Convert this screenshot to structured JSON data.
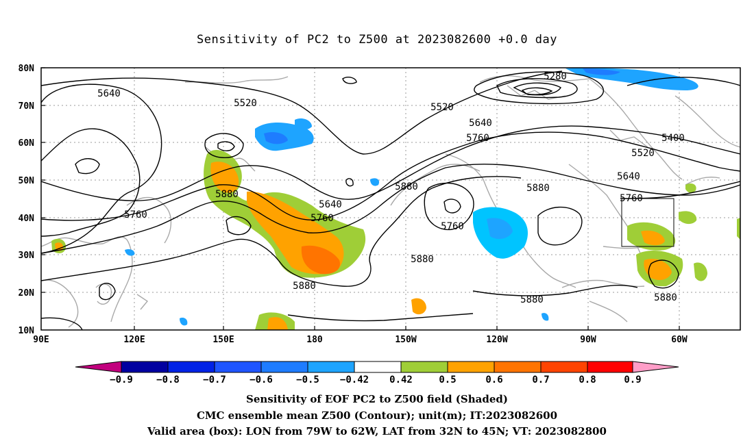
{
  "title": "Sensitivity of PC2 to Z500 at 2023082600 +0.0 day",
  "lat_labels": [
    "80N",
    "70N",
    "60N",
    "50N",
    "40N",
    "30N",
    "20N",
    "10N"
  ],
  "lon_labels": [
    "90E",
    "120E",
    "150E",
    "180",
    "150W",
    "120W",
    "90W",
    "60W"
  ],
  "colorbar": {
    "tick_labels": [
      "−0.9",
      "−0.8",
      "−0.7",
      "−0.6",
      "−0.5",
      "−0.42",
      "0.42",
      "0.5",
      "0.6",
      "0.7",
      "0.8",
      "0.9"
    ],
    "colors": [
      "#c2007e",
      "#0000a0",
      "#0022e6",
      "#1f55ff",
      "#1e7cff",
      "#1ea4ff",
      "#00c4ff",
      "#ffffff",
      "#9fce37",
      "#ffa200",
      "#ff7400",
      "#ff4400",
      "#ff0000",
      "#ff9ec8"
    ]
  },
  "contour_labels": [
    {
      "text": "5280"
    },
    {
      "text": "5640"
    },
    {
      "text": "5520"
    },
    {
      "text": "5520"
    },
    {
      "text": "5640"
    },
    {
      "text": "5760"
    },
    {
      "text": "5400"
    },
    {
      "text": "5520"
    },
    {
      "text": "5640"
    },
    {
      "text": "5760"
    },
    {
      "text": "5880"
    },
    {
      "text": "5880"
    },
    {
      "text": "5640"
    },
    {
      "text": "5760"
    },
    {
      "text": "5880"
    },
    {
      "text": "5760"
    },
    {
      "text": "5880"
    },
    {
      "text": "5880"
    },
    {
      "text": "5880"
    },
    {
      "text": "5880"
    },
    {
      "text": "5760"
    }
  ],
  "valid_box": {
    "lon_from": "79W",
    "lon_to": "62W",
    "lat_from": "32N",
    "lat_to": "45N"
  },
  "captions": {
    "line1": "Sensitivity of EOF PC2 to Z500 field (Shaded)",
    "line2": "CMC ensemble mean Z500 (Contour); unit(m); IT:2023082600",
    "line3": "Valid area (box): LON from 79W to 62W, LAT from 32N to 45N; VT: 2023082800"
  }
}
